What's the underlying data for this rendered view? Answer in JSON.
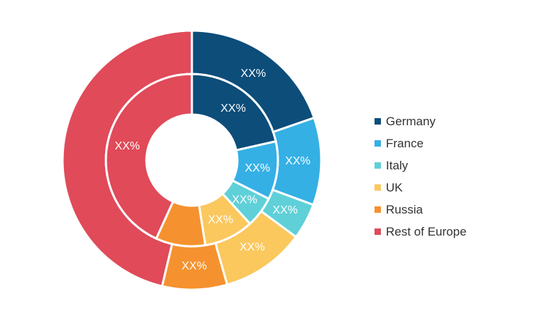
{
  "chart_data": {
    "type": "pie",
    "title": "",
    "categories": [
      "Germany",
      "France",
      "Italy",
      "UK",
      "Russia",
      "Rest of Europe"
    ],
    "colors": [
      "#0c4d7a",
      "#34b0e5",
      "#5fd0d8",
      "#fbc85e",
      "#f5922f",
      "#e04a59"
    ],
    "series": [
      {
        "ring": "outer",
        "values": [
          0.197,
          0.109,
          0.045,
          0.105,
          0.081,
          0.463
        ],
        "labels": [
          "XX%",
          "XX%",
          "XX%",
          "XX%",
          "XX%",
          ""
        ]
      },
      {
        "ring": "inner",
        "values": [
          0.215,
          0.109,
          0.058,
          0.093,
          0.093,
          0.432
        ],
        "labels": [
          "XX%",
          "XX%",
          "XX%",
          "XX%",
          "",
          "XX%"
        ]
      }
    ],
    "legend_position": "right"
  },
  "legend": {
    "items": [
      {
        "label": "Germany",
        "color": "#0c4d7a"
      },
      {
        "label": "France",
        "color": "#34b0e5"
      },
      {
        "label": "Italy",
        "color": "#5fd0d8"
      },
      {
        "label": "UK",
        "color": "#fbc85e"
      },
      {
        "label": "Russia",
        "color": "#f5922f"
      },
      {
        "label": "Rest of Europe",
        "color": "#e04a59"
      }
    ]
  }
}
